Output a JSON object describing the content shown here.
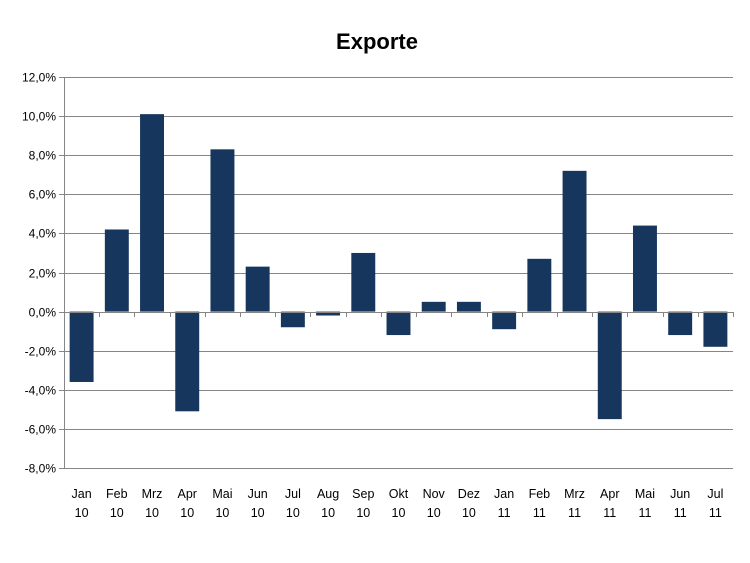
{
  "chart_data": {
    "type": "bar",
    "title": "Exporte",
    "xlabel": "",
    "ylabel": "",
    "ylim": [
      -8,
      12
    ],
    "y_tick_step": 2,
    "y_tick_labels": [
      "12,0%",
      "10,0%",
      "8,0%",
      "6,0%",
      "4,0%",
      "2,0%",
      "0,0%",
      "-2,0%",
      "-4,0%",
      "-6,0%",
      "-8,0%"
    ],
    "categories": [
      {
        "month": "Jan",
        "year": "10"
      },
      {
        "month": "Feb",
        "year": "10"
      },
      {
        "month": "Mrz",
        "year": "10"
      },
      {
        "month": "Apr",
        "year": "10"
      },
      {
        "month": "Mai",
        "year": "10"
      },
      {
        "month": "Jun",
        "year": "10"
      },
      {
        "month": "Jul",
        "year": "10"
      },
      {
        "month": "Aug",
        "year": "10"
      },
      {
        "month": "Sep",
        "year": "10"
      },
      {
        "month": "Okt",
        "year": "10"
      },
      {
        "month": "Nov",
        "year": "10"
      },
      {
        "month": "Dez",
        "year": "10"
      },
      {
        "month": "Jan",
        "year": "11"
      },
      {
        "month": "Feb",
        "year": "11"
      },
      {
        "month": "Mrz",
        "year": "11"
      },
      {
        "month": "Apr",
        "year": "11"
      },
      {
        "month": "Mai",
        "year": "11"
      },
      {
        "month": "Jun",
        "year": "11"
      },
      {
        "month": "Jul",
        "year": "11"
      }
    ],
    "values": [
      -3.6,
      4.2,
      10.1,
      -5.1,
      8.3,
      2.3,
      -0.8,
      -0.2,
      3.0,
      -1.2,
      0.5,
      0.5,
      -0.9,
      2.7,
      7.2,
      -5.5,
      4.4,
      -1.2,
      -1.8
    ],
    "grid": true,
    "legend": "none",
    "bar_color": "#17365d",
    "grid_color": "#868686"
  }
}
